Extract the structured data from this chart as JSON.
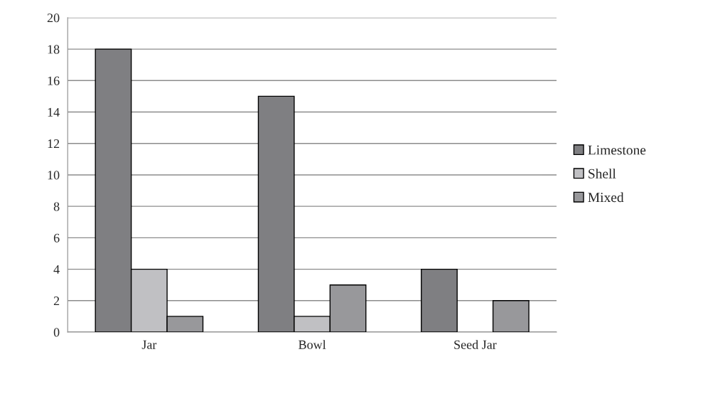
{
  "chart_data": {
    "type": "bar",
    "categories": [
      "Jar",
      "Bowl",
      "Seed Jar"
    ],
    "series": [
      {
        "name": "Limestone",
        "color": "#7f7f82",
        "values": [
          18,
          15,
          4
        ]
      },
      {
        "name": "Shell",
        "color": "#c0c0c3",
        "values": [
          4,
          1,
          0
        ]
      },
      {
        "name": "Mixed",
        "color": "#98989b",
        "values": [
          1,
          3,
          2
        ]
      }
    ],
    "ylim": [
      0,
      20
    ],
    "yticks": [
      0,
      2,
      4,
      6,
      8,
      10,
      12,
      14,
      16,
      18,
      20
    ],
    "grid": "y",
    "legend": "right"
  }
}
